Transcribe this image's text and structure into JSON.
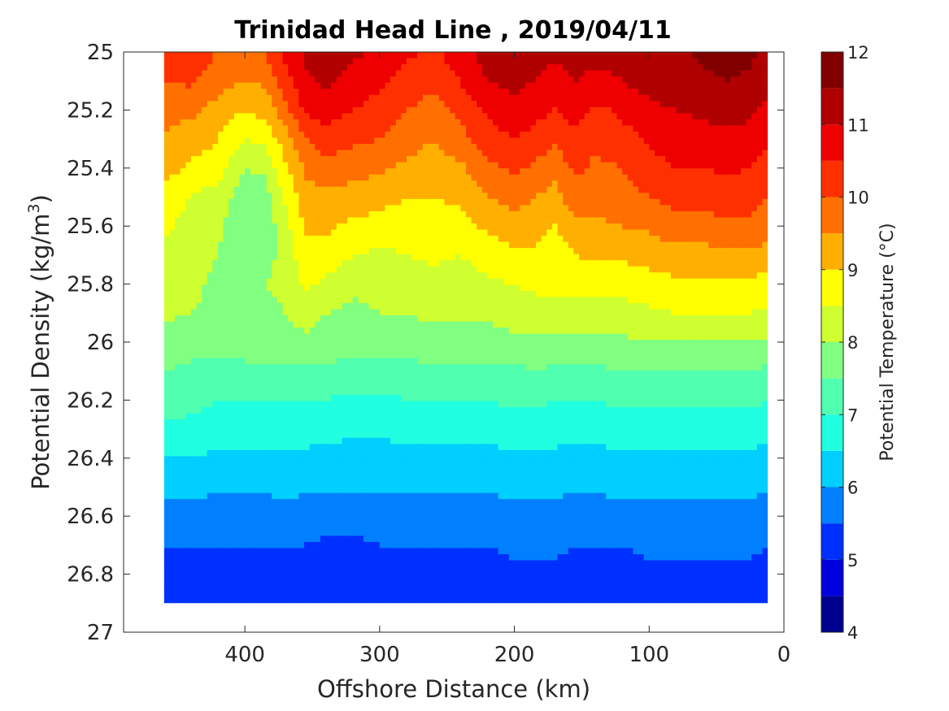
{
  "chart_data": {
    "type": "heatmap",
    "subtype": "filled-contour",
    "title": "Trinidad Head Line , 2019/04/11",
    "xlabel": "Offshore Distance (km)",
    "ylabel": "Potential Density (kg/m",
    "ylabel_sup": "3",
    "ylabel_close": ")",
    "colorbar_label": "Potential Temperature (°C)",
    "x_reversed": true,
    "xlim": [
      490,
      0
    ],
    "ylim": [
      25,
      27
    ],
    "y_reversed": true,
    "xticks": [
      400,
      300,
      200,
      100,
      0
    ],
    "xtick_labels": [
      "400",
      "300",
      "200",
      "100",
      "0"
    ],
    "yticks": [
      25,
      25.2,
      25.4,
      25.6,
      25.8,
      26,
      26.2,
      26.4,
      26.6,
      26.8,
      27
    ],
    "ytick_labels": [
      "25",
      "25.2",
      "25.4",
      "25.6",
      "25.8",
      "26",
      "26.2",
      "26.4",
      "26.6",
      "26.8",
      "27"
    ],
    "colorbar": {
      "range": [
        4,
        12
      ],
      "tick_values": [
        4,
        5,
        6,
        7,
        8,
        9,
        10,
        11,
        12
      ],
      "tick_labels": [
        "4",
        "5",
        "6",
        "7",
        "8",
        "9",
        "10",
        "11",
        "12"
      ],
      "level_step": 0.5,
      "colors": [
        "#00008f",
        "#0000df",
        "#0030ff",
        "#0080ff",
        "#00cfff",
        "#20ffdf",
        "#50ffaf",
        "#80ff80",
        "#cfff30",
        "#ffff00",
        "#ffaf00",
        "#ff7000",
        "#ff3000",
        "#ef0000",
        "#b00000",
        "#800000"
      ]
    },
    "data_extent": {
      "x_min": 12,
      "x_max": 460,
      "density_max": 26.9
    },
    "columns": [
      {
        "x": 460,
        "t": [
          10.2,
          10.0,
          9.6,
          9.5,
          9.2,
          8.8,
          8.6,
          8.4,
          8.3,
          8.1,
          7.8,
          7.5,
          7.2,
          6.9,
          6.5,
          6.0,
          5.5,
          5.1
        ]
      },
      {
        "x": 440,
        "t": [
          10.3,
          10.1,
          9.6,
          9.3,
          8.9,
          8.5,
          8.3,
          8.2,
          8.1,
          8.0,
          7.7,
          7.4,
          7.1,
          6.9,
          6.5,
          6.0,
          5.5,
          5.1
        ]
      },
      {
        "x": 420,
        "t": [
          10.0,
          9.7,
          9.3,
          9.0,
          8.7,
          8.3,
          8.1,
          8.0,
          7.9,
          7.9,
          7.7,
          7.3,
          7.0,
          6.8,
          6.4,
          5.9,
          5.5,
          5.1
        ]
      },
      {
        "x": 400,
        "t": [
          9.8,
          9.5,
          9.0,
          8.5,
          8.0,
          7.7,
          7.6,
          7.7,
          7.9,
          7.9,
          7.7,
          7.4,
          7.0,
          6.8,
          6.4,
          5.9,
          5.5,
          5.1
        ]
      },
      {
        "x": 385,
        "t": [
          10.0,
          9.6,
          9.2,
          8.6,
          8.1,
          7.8,
          7.7,
          7.8,
          8.0,
          7.9,
          7.7,
          7.4,
          7.0,
          6.8,
          6.4,
          5.9,
          5.5,
          5.1
        ]
      },
      {
        "x": 370,
        "t": [
          10.7,
          10.3,
          9.8,
          9.3,
          8.9,
          8.6,
          8.3,
          8.2,
          8.1,
          8.0,
          7.8,
          7.4,
          7.0,
          6.8,
          6.4,
          6.0,
          5.5,
          5.1
        ]
      },
      {
        "x": 355,
        "t": [
          11.1,
          10.9,
          10.6,
          10.0,
          9.6,
          9.3,
          9.1,
          8.8,
          8.6,
          8.2,
          7.9,
          7.4,
          7.0,
          6.7,
          6.4,
          5.9,
          5.5,
          5.0
        ]
      },
      {
        "x": 340,
        "t": [
          11.3,
          11.1,
          10.7,
          10.3,
          9.8,
          9.4,
          9.1,
          8.8,
          8.4,
          8.0,
          7.8,
          7.4,
          7.0,
          6.7,
          6.3,
          5.9,
          5.4,
          5.0
        ]
      },
      {
        "x": 320,
        "t": [
          11.1,
          10.8,
          10.5,
          10.1,
          9.7,
          9.3,
          8.9,
          8.5,
          8.1,
          7.9,
          7.7,
          7.3,
          6.9,
          6.6,
          6.3,
          5.9,
          5.4,
          5.0
        ]
      },
      {
        "x": 300,
        "t": [
          10.9,
          10.6,
          10.3,
          10.0,
          9.6,
          9.2,
          8.8,
          8.4,
          8.2,
          8.0,
          7.7,
          7.3,
          6.9,
          6.6,
          6.3,
          5.9,
          5.5,
          5.1
        ]
      },
      {
        "x": 280,
        "t": [
          10.6,
          10.3,
          10.0,
          9.7,
          9.4,
          9.0,
          8.7,
          8.5,
          8.3,
          8.0,
          7.8,
          7.3,
          7.0,
          6.7,
          6.3,
          5.9,
          5.5,
          5.1
        ]
      },
      {
        "x": 260,
        "t": [
          10.4,
          10.1,
          9.8,
          9.5,
          9.3,
          9.0,
          8.8,
          8.6,
          8.3,
          8.1,
          7.8,
          7.4,
          7.0,
          6.7,
          6.3,
          5.9,
          5.5,
          5.1
        ]
      },
      {
        "x": 240,
        "t": [
          10.8,
          10.5,
          10.2,
          9.8,
          9.4,
          9.1,
          8.8,
          8.5,
          8.3,
          8.1,
          7.8,
          7.4,
          7.0,
          6.7,
          6.3,
          5.9,
          5.5,
          5.1
        ]
      },
      {
        "x": 220,
        "t": [
          11.2,
          11.0,
          10.6,
          10.3,
          9.9,
          9.5,
          9.1,
          8.7,
          8.4,
          8.1,
          7.8,
          7.4,
          7.0,
          6.7,
          6.3,
          5.9,
          5.5,
          5.1
        ]
      },
      {
        "x": 200,
        "t": [
          11.3,
          11.1,
          10.9,
          10.5,
          10.1,
          9.7,
          9.3,
          8.9,
          8.5,
          8.2,
          7.9,
          7.4,
          7.1,
          6.8,
          6.4,
          6.0,
          5.6,
          5.2
        ]
      },
      {
        "x": 185,
        "t": [
          11.2,
          11.0,
          10.7,
          10.3,
          9.9,
          9.5,
          9.2,
          8.9,
          8.6,
          8.3,
          7.9,
          7.5,
          7.1,
          6.8,
          6.4,
          6.0,
          5.6,
          5.2
        ]
      },
      {
        "x": 170,
        "t": [
          11.1,
          10.8,
          10.5,
          10.1,
          9.7,
          9.3,
          9.0,
          8.7,
          8.6,
          8.4,
          7.9,
          7.4,
          7.0,
          6.7,
          6.4,
          6.0,
          5.6,
          5.2
        ]
      },
      {
        "x": 155,
        "t": [
          11.3,
          11.0,
          10.7,
          10.4,
          10.1,
          9.8,
          9.4,
          9.0,
          8.6,
          8.3,
          7.9,
          7.4,
          7.0,
          6.7,
          6.3,
          5.9,
          5.5,
          5.1
        ]
      },
      {
        "x": 140,
        "t": [
          11.2,
          10.8,
          10.4,
          10.1,
          9.9,
          9.7,
          9.4,
          9.1,
          8.7,
          8.3,
          7.9,
          7.4,
          7.0,
          6.7,
          6.3,
          5.9,
          5.5,
          5.1
        ]
      },
      {
        "x": 120,
        "t": [
          11.3,
          11.0,
          10.6,
          10.3,
          10.0,
          9.8,
          9.5,
          9.1,
          8.7,
          8.3,
          7.9,
          7.5,
          7.1,
          6.8,
          6.4,
          6.0,
          5.5,
          5.1
        ]
      },
      {
        "x": 100,
        "t": [
          11.4,
          11.2,
          10.9,
          10.6,
          10.3,
          10.0,
          9.6,
          9.2,
          8.8,
          8.4,
          8.0,
          7.5,
          7.1,
          6.8,
          6.4,
          6.0,
          5.6,
          5.2
        ]
      },
      {
        "x": 80,
        "t": [
          11.4,
          11.2,
          11.0,
          10.8,
          10.5,
          10.2,
          9.8,
          9.3,
          8.9,
          8.5,
          8.0,
          7.5,
          7.1,
          6.8,
          6.4,
          6.0,
          5.6,
          5.2
        ]
      },
      {
        "x": 60,
        "t": [
          11.6,
          11.4,
          11.1,
          10.8,
          10.5,
          10.2,
          9.8,
          9.3,
          8.9,
          8.5,
          8.0,
          7.5,
          7.1,
          6.8,
          6.4,
          6.0,
          5.6,
          5.2
        ]
      },
      {
        "x": 40,
        "t": [
          11.7,
          11.5,
          11.2,
          10.9,
          10.6,
          10.3,
          9.9,
          9.4,
          8.9,
          8.5,
          8.0,
          7.5,
          7.1,
          6.8,
          6.4,
          6.0,
          5.6,
          5.2
        ]
      },
      {
        "x": 25,
        "t": [
          11.6,
          11.4,
          11.1,
          10.8,
          10.5,
          10.2,
          9.9,
          9.4,
          8.9,
          8.5,
          8.0,
          7.5,
          7.1,
          6.8,
          6.4,
          6.0,
          5.6,
          5.2
        ]
      },
      {
        "x": 12,
        "t": [
          11.4,
          11.2,
          10.9,
          10.6,
          10.3,
          10.0,
          9.7,
          9.3,
          8.8,
          8.4,
          7.9,
          7.4,
          7.0,
          6.7,
          6.3,
          5.9,
          5.5,
          5.1
        ]
      }
    ],
    "density_levels": [
      25.0,
      25.1,
      25.2,
      25.3,
      25.4,
      25.5,
      25.6,
      25.7,
      25.8,
      25.9,
      26.0,
      26.1,
      26.2,
      26.3,
      26.4,
      26.55,
      26.7,
      26.9
    ]
  }
}
